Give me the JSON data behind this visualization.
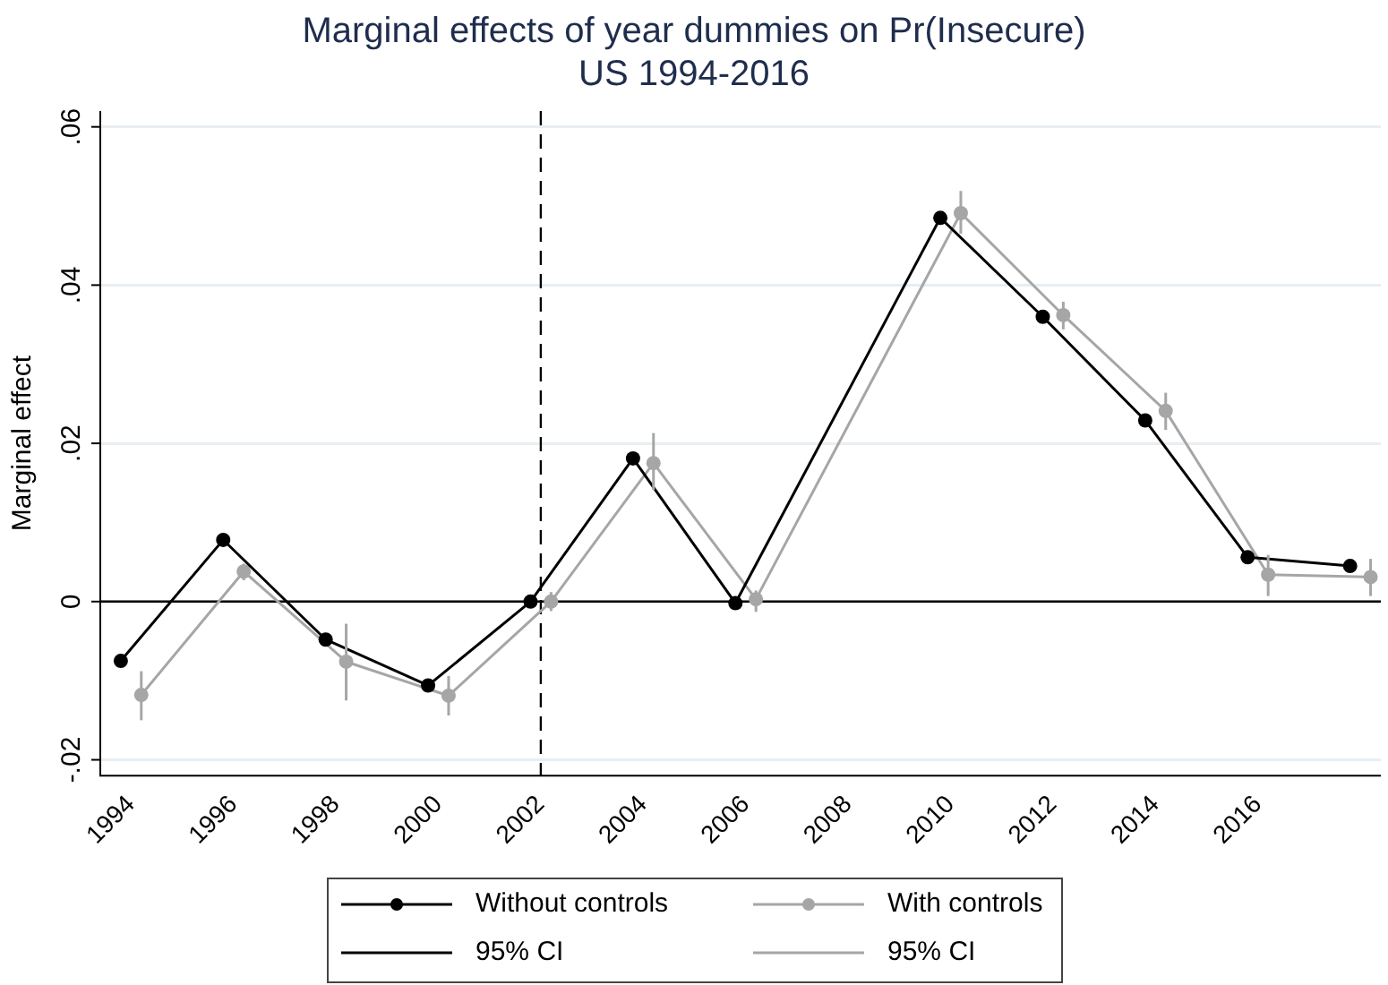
{
  "chart_data": {
    "type": "line",
    "title": "Marginal effects of year dummies on Pr(Insecure)",
    "subtitle": "US 1994-2016",
    "ylabel": "Marginal effect",
    "series": [
      {
        "name": "Without controls",
        "color": "#000000",
        "x": [
          1993.8,
          1995.8,
          1997.8,
          1999.8,
          2001.8,
          2003.8,
          2005.8,
          2009.8,
          2011.8,
          2013.8,
          2015.8,
          2017.8
        ],
        "values": [
          -0.0075,
          0.0078,
          -0.0048,
          -0.0106,
          0,
          0.0181,
          -0.0002,
          0.0485,
          0.036,
          0.0229,
          0.0056,
          0.0045
        ]
      },
      {
        "name": "With controls",
        "color": "#a6a6a6",
        "x": [
          1994.2,
          1996.2,
          1998.2,
          2000.2,
          2002.2,
          2004.2,
          2006.2,
          2010.2,
          2012.2,
          2014.2,
          2016.2,
          2018.2
        ],
        "values": [
          -0.0118,
          0.0038,
          -0.0076,
          -0.0119,
          0,
          0.0175,
          0.0003,
          0.0491,
          0.0362,
          0.0241,
          0.0034,
          0.0031
        ],
        "errors": [
          [
            -0.015,
            -0.0088
          ],
          [
            0.0027,
            0.0048
          ],
          [
            -0.0125,
            -0.0028
          ],
          [
            -0.0144,
            -0.0094
          ],
          [
            -0.0012,
            0.0012
          ],
          [
            0.0141,
            0.0213
          ],
          [
            -0.0013,
            0.0014
          ],
          [
            0.0465,
            0.0519
          ],
          [
            0.0344,
            0.0379
          ],
          [
            0.0217,
            0.0264
          ],
          [
            0.0007,
            0.0059
          ],
          [
            0.0007,
            0.0054
          ]
        ]
      }
    ],
    "annotations": [
      "95% CI",
      "95% CI"
    ],
    "xlim": [
      1993.4,
      2018.4
    ],
    "xticks": [
      1994,
      1996,
      1998,
      2000,
      2002,
      2004,
      2006,
      2008,
      2010,
      2012,
      2014,
      2016
    ],
    "ylim": [
      -0.022,
      0.062
    ],
    "yticks": [
      {
        "value": -0.02,
        "label": "-.02"
      },
      {
        "value": 0,
        "label": "0"
      },
      {
        "value": 0.02,
        "label": ".02"
      },
      {
        "value": 0.04,
        "label": ".04"
      },
      {
        "value": 0.06,
        "label": ".06"
      }
    ],
    "ref_lines": [
      {
        "axis": "y",
        "value": 0,
        "color": "#000000",
        "line_style": "solid"
      },
      {
        "axis": "x",
        "value": 2002,
        "color": "#000000",
        "line_style": "dashed"
      }
    ],
    "grid": "y",
    "legend": "bottom",
    "marker": "circle",
    "line_style": "solid"
  }
}
